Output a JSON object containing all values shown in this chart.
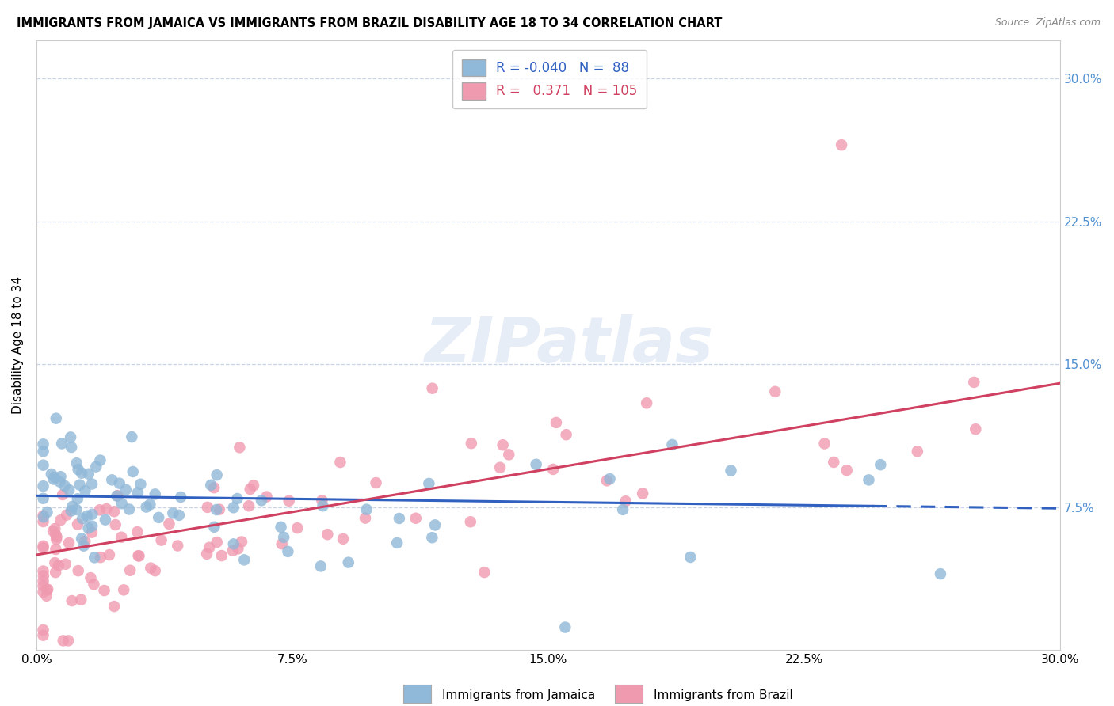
{
  "title": "IMMIGRANTS FROM JAMAICA VS IMMIGRANTS FROM BRAZIL DISABILITY AGE 18 TO 34 CORRELATION CHART",
  "source": "Source: ZipAtlas.com",
  "ylabel": "Disability Age 18 to 34",
  "xlim": [
    0.0,
    0.3
  ],
  "ylim": [
    0.0,
    0.32
  ],
  "watermark": "ZIPatlas",
  "jamaica_color": "#90b8d8",
  "brazil_color": "#f09ab0",
  "jamaica_line_color": "#3060c0",
  "brazil_line_color": "#d04060",
  "jamaica_R": -0.04,
  "jamaica_N": 88,
  "brazil_R": 0.371,
  "brazil_N": 105,
  "jamaica_intercept": 0.081,
  "jamaica_slope": -0.022,
  "brazil_intercept": 0.05,
  "brazil_slope": 0.3,
  "grid_color": "#c8d4e8",
  "right_tick_color": "#5090d0"
}
